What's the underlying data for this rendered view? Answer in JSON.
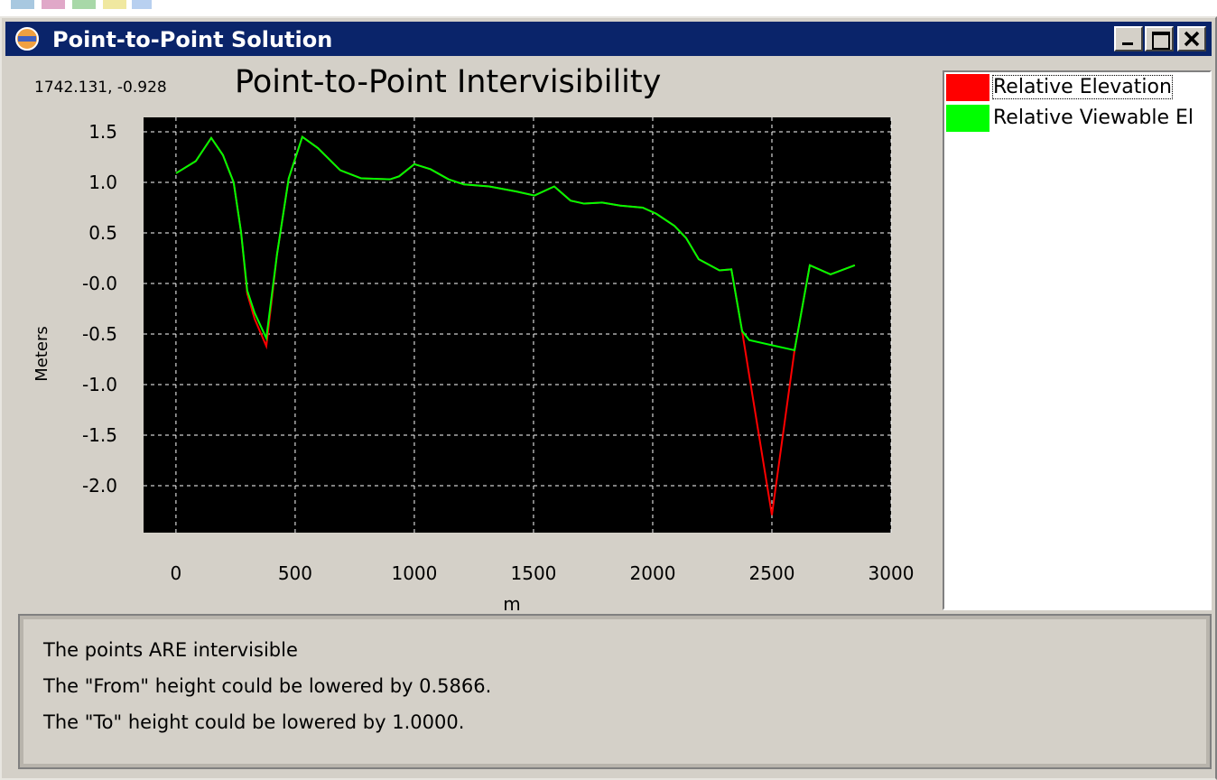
{
  "window": {
    "title": "Point-to-Point Solution"
  },
  "chart_data": {
    "type": "line",
    "title": "Point-to-Point Intervisibility",
    "annotation": "1742.131, -0.928",
    "x_label": "m",
    "y_label": "Meters",
    "x": [
      0,
      83,
      148,
      197,
      242,
      273,
      299,
      330,
      379,
      424,
      473,
      530,
      595,
      689,
      777,
      898,
      936,
      1000,
      1068,
      1144,
      1208,
      1314,
      1428,
      1504,
      1587,
      1655,
      1712,
      1788,
      1864,
      1958,
      2015,
      2091,
      2140,
      2193,
      2280,
      2330,
      2375,
      2405,
      2500,
      2595,
      2659,
      2746,
      2848
    ],
    "series": [
      {
        "name": "Relative Elevation",
        "color": "#ff0000",
        "values": [
          1.09,
          1.21,
          1.44,
          1.27,
          1.0,
          0.51,
          -0.1,
          -0.35,
          -0.62,
          0.29,
          1.04,
          1.45,
          1.34,
          1.12,
          1.04,
          1.03,
          1.06,
          1.18,
          1.13,
          1.03,
          0.98,
          0.96,
          0.91,
          0.87,
          0.96,
          0.82,
          0.79,
          0.8,
          0.77,
          0.75,
          0.69,
          0.57,
          0.45,
          0.24,
          0.13,
          0.14,
          -0.47,
          -0.91,
          -2.29,
          -0.66,
          0.18,
          0.09,
          0.18
        ]
      },
      {
        "name": "Relative Viewable El",
        "color": "#00ff00",
        "values": [
          1.09,
          1.21,
          1.44,
          1.27,
          1.0,
          0.51,
          -0.07,
          -0.29,
          -0.54,
          0.29,
          1.04,
          1.45,
          1.34,
          1.12,
          1.04,
          1.03,
          1.06,
          1.18,
          1.13,
          1.03,
          0.98,
          0.96,
          0.91,
          0.87,
          0.96,
          0.82,
          0.79,
          0.8,
          0.77,
          0.75,
          0.69,
          0.57,
          0.45,
          0.24,
          0.13,
          0.14,
          -0.47,
          -0.56,
          -0.61,
          -0.66,
          0.18,
          0.09,
          0.18
        ]
      }
    ],
    "xlim": [
      -136,
      3000
    ],
    "xticks": [
      0,
      500,
      1000,
      1500,
      2000,
      2500,
      3000
    ],
    "ylim": [
      -2.464,
      1.643
    ],
    "yticks": [
      1.5,
      {
        "value": 1,
        "label": "1.0"
      },
      0.5,
      {
        "value": 0,
        "label": "-0.0"
      },
      -0.5,
      {
        "value": -1,
        "label": "-1.0"
      },
      -1.5,
      {
        "value": -2,
        "label": "-2.0"
      }
    ],
    "grid": true
  },
  "info": {
    "lines": [
      "The points ARE intervisible",
      "The \"From\" height could be lowered by 0.5866.",
      "The \"To\" height could be lowered by 1.0000."
    ]
  }
}
